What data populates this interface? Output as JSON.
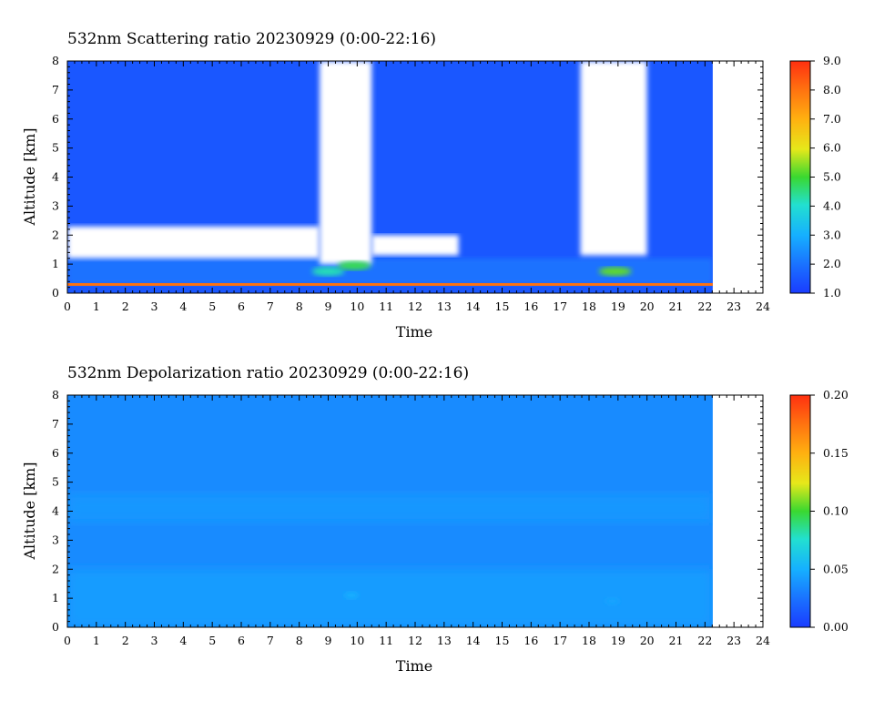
{
  "panels": [
    {
      "title": "532nm Scattering ratio  20230929 (0:00-22:16)",
      "xlabel": "Time",
      "ylabel": "Altitude [km]",
      "xlim": [
        0,
        24
      ],
      "ylim": [
        0,
        8
      ],
      "x_ticks": [
        "0",
        "1",
        "2",
        "3",
        "4",
        "5",
        "6",
        "7",
        "8",
        "9",
        "10",
        "11",
        "12",
        "13",
        "14",
        "15",
        "16",
        "17",
        "18",
        "19",
        "20",
        "21",
        "22",
        "23",
        "24"
      ],
      "y_ticks": [
        "0",
        "1",
        "2",
        "3",
        "4",
        "5",
        "6",
        "7",
        "8"
      ],
      "colorbar_ticks": [
        "1.0",
        "2.0",
        "3.0",
        "4.0",
        "5.0",
        "6.0",
        "7.0",
        "8.0",
        "9.0"
      ],
      "colorbar_range": [
        1.0,
        9.0
      ]
    },
    {
      "title": "532nm Depolarization ratio  20230929 (0:00-22:16)",
      "xlabel": "Time",
      "ylabel": "Altitude [km]",
      "xlim": [
        0,
        24
      ],
      "ylim": [
        0,
        8
      ],
      "x_ticks": [
        "0",
        "1",
        "2",
        "3",
        "4",
        "5",
        "6",
        "7",
        "8",
        "9",
        "10",
        "11",
        "12",
        "13",
        "14",
        "15",
        "16",
        "17",
        "18",
        "19",
        "20",
        "21",
        "22",
        "23",
        "24"
      ],
      "y_ticks": [
        "0",
        "1",
        "2",
        "3",
        "4",
        "5",
        "6",
        "7",
        "8"
      ],
      "colorbar_ticks": [
        "0.00",
        "0.05",
        "0.10",
        "0.15",
        "0.20"
      ],
      "colorbar_range": [
        0.0,
        0.2
      ]
    }
  ],
  "chart_data": [
    {
      "type": "heatmap",
      "title": "532nm Scattering ratio  20230929 (0:00-22:16)",
      "xlabel": "Time",
      "ylabel": "Altitude [km]",
      "xlim": [
        0,
        24
      ],
      "ylim": [
        0,
        8
      ],
      "data_end_time": 22.27,
      "colorbar": [
        1.0,
        9.0
      ],
      "background_value": 1.5,
      "gaps": [
        {
          "label": "cloud gap",
          "t_start": 8.7,
          "t_end": 10.5,
          "alt_start": 1.0,
          "alt_end": 8.0
        },
        {
          "label": "cloud gap",
          "t_start": 17.7,
          "t_end": 20.0,
          "alt_start": 1.3,
          "alt_end": 8.0
        },
        {
          "label": "low gap",
          "t_start": 0.0,
          "t_end": 8.7,
          "alt_start": 1.2,
          "alt_end": 2.3
        },
        {
          "label": "low gap",
          "t_start": 10.5,
          "t_end": 13.5,
          "alt_start": 1.3,
          "alt_end": 2.0
        }
      ],
      "features": [
        {
          "t": 9.0,
          "alt": 0.75,
          "value": 4.2
        },
        {
          "t": 9.9,
          "alt": 0.95,
          "value": 4.8
        },
        {
          "t": 18.9,
          "alt": 0.75,
          "value": 5.2
        }
      ],
      "surface_layer": {
        "alt": 0.3,
        "value": 8.0
      }
    },
    {
      "type": "heatmap",
      "title": "532nm Depolarization ratio  20230929 (0:00-22:16)",
      "xlabel": "Time",
      "ylabel": "Altitude [km]",
      "xlim": [
        0,
        24
      ],
      "ylim": [
        0,
        8
      ],
      "data_end_time": 22.27,
      "colorbar": [
        0.0,
        0.2
      ],
      "background_value": 0.035,
      "features": [
        {
          "t": 9.8,
          "alt": 1.1,
          "value": 0.05
        },
        {
          "t": 18.8,
          "alt": 0.9,
          "value": 0.045
        }
      ]
    }
  ]
}
